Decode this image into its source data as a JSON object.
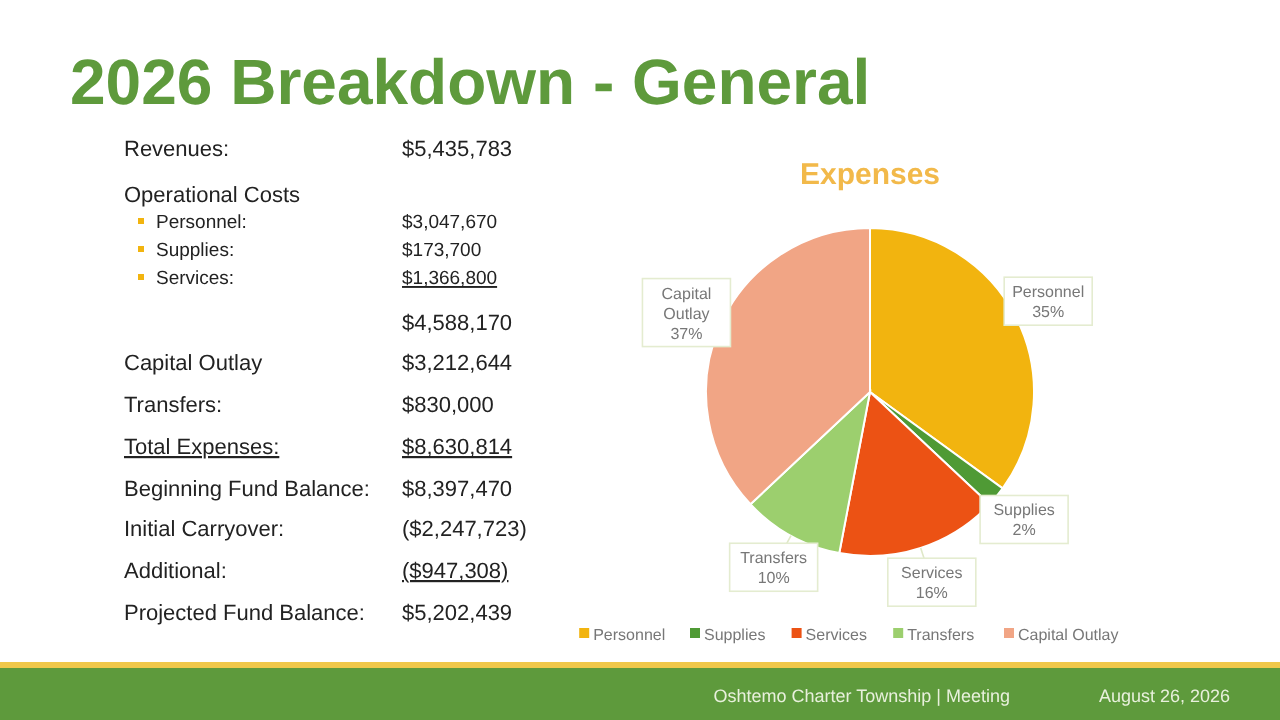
{
  "chart_data": [
    {
      "type": "other",
      "title": "2026 Breakdown - General",
      "annotations": [
        "Revenues:",
        "$5,435,783",
        "Operational Costs",
        "Personnel:",
        "$3,047,670",
        "Supplies:",
        "$173,700",
        "Services:",
        "$1,366,800",
        "$4,588,170",
        "Capital Outlay",
        "$3,212,644",
        "Transfers:",
        "$830,000",
        "Total Expenses:",
        "$8,630,814",
        "Beginning Fund Balance:",
        "$8,397,470",
        "Initial Carryover:",
        "($2,247,723)",
        "Additional:",
        "($947,308)",
        "Projected Fund Balance:",
        "$5,202,439",
        "Oshtemo Charter Township | Meeting",
        "August 26, 2026"
      ]
    },
    {
      "type": "pie",
      "title": "Expenses",
      "categories": [
        "Personnel",
        "Supplies",
        "Services",
        "Transfers",
        "Capital Outlay"
      ],
      "values": [
        35,
        2,
        16,
        10,
        37
      ],
      "value_labels": [
        "35%",
        "2%",
        "16%",
        "10%",
        "37%"
      ],
      "colors": [
        "#f2b40f",
        "#4f9a35",
        "#ec5214",
        "#9ccf6e",
        "#f1a585"
      ],
      "data_labels": true,
      "legend": "bottom"
    }
  ]
}
